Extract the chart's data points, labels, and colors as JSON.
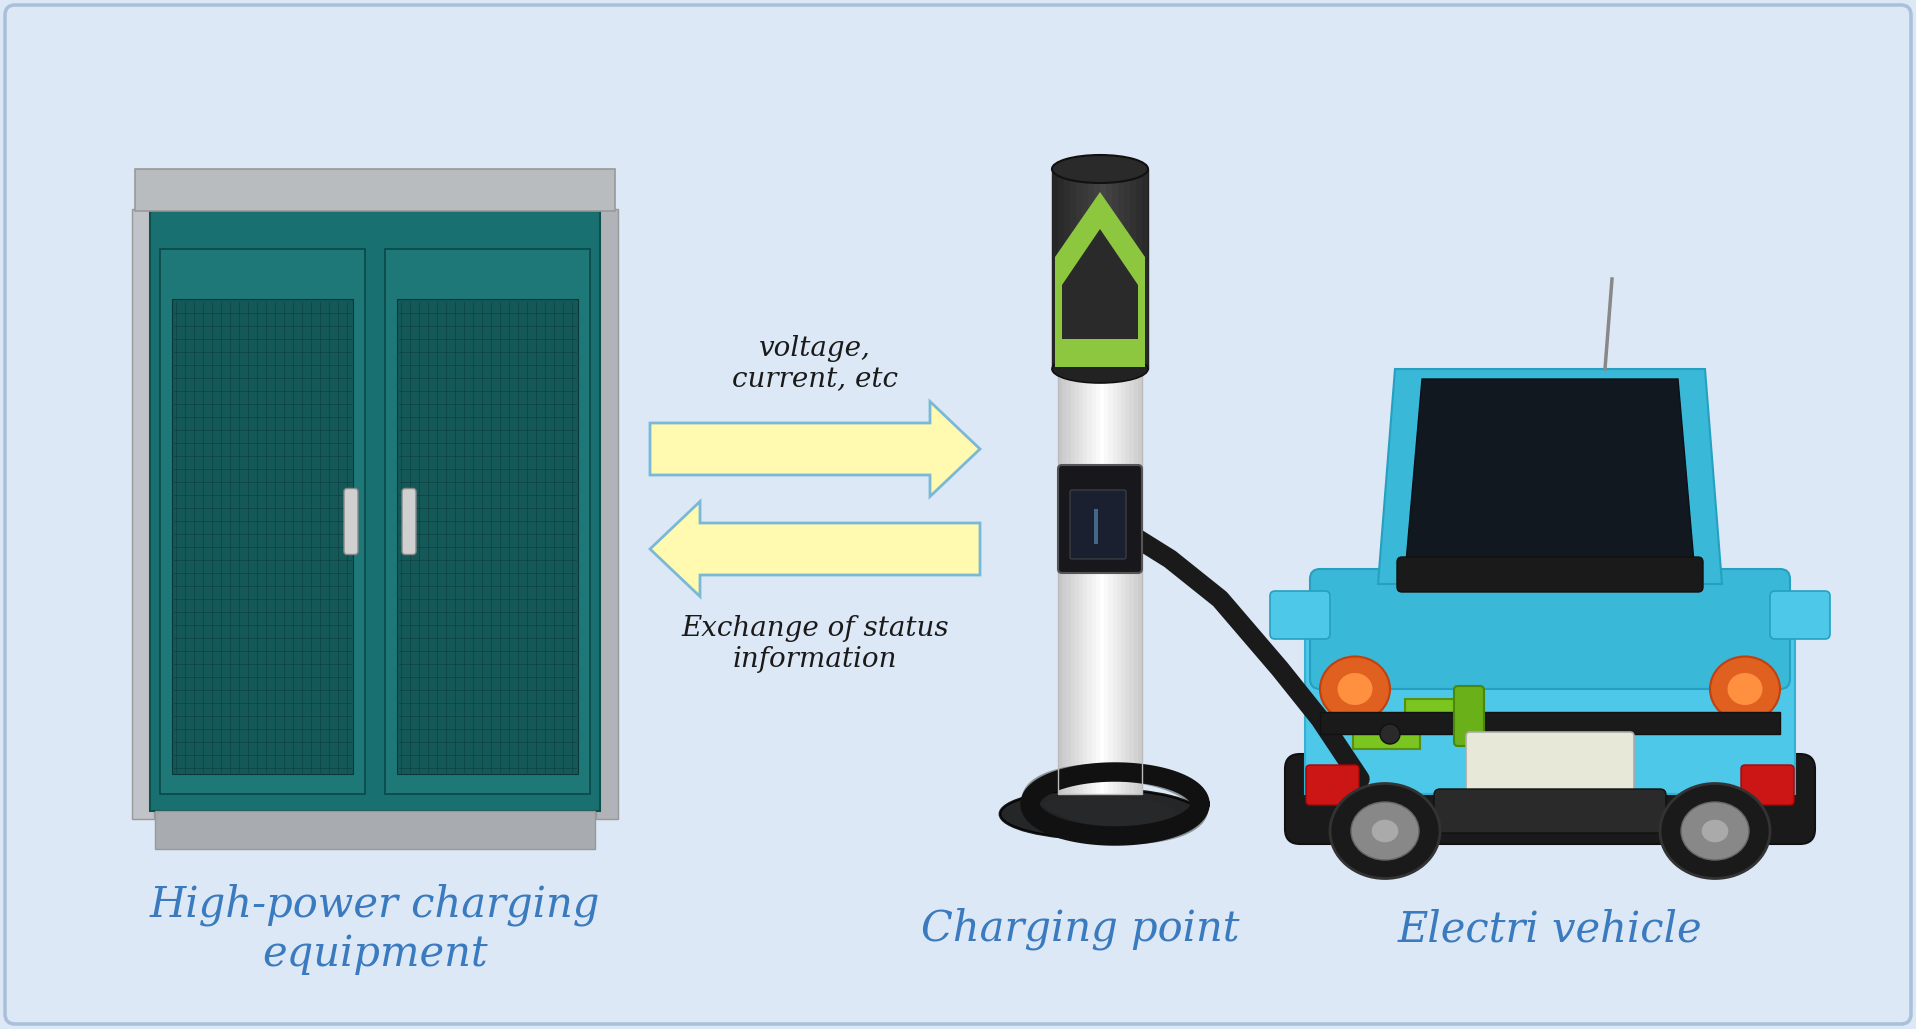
{
  "bg_color": "#dce8f5",
  "border_color": "#aabfd8",
  "text_color_labels": "#3a7abf",
  "text_color_arrows": "#1a1a1a",
  "arrow_fill": "#fffab0",
  "arrow_edge": "#7ab8d8",
  "label1": "High-power charging\nequipment",
  "label2": "Charging point",
  "label3": "Electri vehicle",
  "arrow_text1": "voltage,\ncurrent, etc",
  "arrow_text2": "Exchange of status\ninformation",
  "label_fontsize": 30,
  "arrow_text_fontsize": 20,
  "figsize": [
    19.16,
    10.29
  ],
  "dpi": 100
}
